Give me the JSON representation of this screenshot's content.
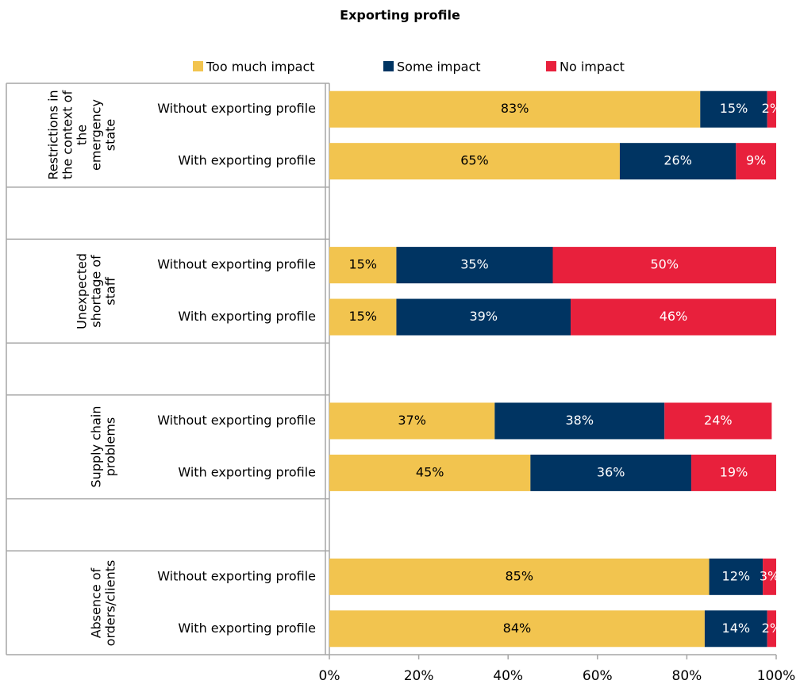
{
  "chart_data": {
    "type": "bar",
    "orientation": "horizontal",
    "stacked": true,
    "title": "Exporting profile",
    "categories": [
      "Without exporting profile",
      "With exporting profile",
      null,
      "Without exporting profile",
      "With exporting profile",
      null,
      "Without exporting profile",
      "With exporting profile",
      null,
      "Without exporting profile",
      "With exporting profile"
    ],
    "group_labels": [
      "Restrictions in the context of the emergency state",
      "Unexpected shortage of staff",
      "Supply chain problems",
      "Absence of orders/clients"
    ],
    "series": [
      {
        "name": "Too much impact",
        "color": "#f2c44f",
        "label_color": "#000000",
        "values": [
          83,
          65,
          null,
          15,
          15,
          null,
          37,
          45,
          null,
          85,
          84
        ],
        "value_labels": [
          "83%",
          "65%",
          null,
          "15%",
          "15%",
          null,
          "37%",
          "45%",
          null,
          "85%",
          "84%"
        ]
      },
      {
        "name": "Some impact",
        "color": "#003462",
        "label_color": "#ffffff",
        "values": [
          15,
          26,
          null,
          35,
          39,
          null,
          38,
          36,
          null,
          12,
          14
        ],
        "value_labels": [
          "15%",
          "26%",
          null,
          "35%",
          "39%",
          null,
          "38%",
          "36%",
          null,
          "12%",
          "14%"
        ]
      },
      {
        "name": "No impact",
        "color": "#e8203c",
        "label_color": "#ffffff",
        "values": [
          2,
          9,
          null,
          50,
          46,
          null,
          24,
          19,
          null,
          3,
          2
        ],
        "value_labels": [
          "2%",
          "9%",
          null,
          "50%",
          "46%",
          null,
          "24%",
          "19%",
          null,
          "3%",
          "2%"
        ]
      }
    ],
    "xlim": [
      0,
      100
    ],
    "xticks": [
      {
        "value": 0,
        "label": "0%"
      },
      {
        "value": 20,
        "label": "20%"
      },
      {
        "value": 40,
        "label": "40%"
      },
      {
        "value": 60,
        "label": "60%"
      },
      {
        "value": 80,
        "label": "80%"
      },
      {
        "value": 100,
        "label": "100%"
      }
    ],
    "legend": "top"
  }
}
